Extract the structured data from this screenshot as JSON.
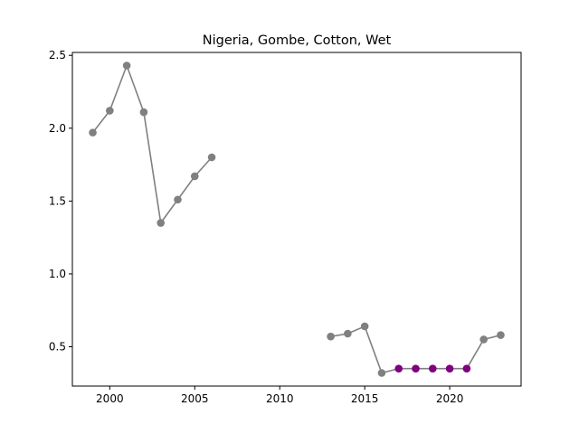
{
  "chart_data": {
    "type": "line",
    "title": "Nigeria, Gombe, Cotton, Wet",
    "xlabel": "",
    "ylabel": "",
    "xlim": [
      1997.8,
      2024.2
    ],
    "ylim": [
      0.23,
      2.52
    ],
    "x_ticks": [
      {
        "value": 2000,
        "label": "2000"
      },
      {
        "value": 2005,
        "label": "2005"
      },
      {
        "value": 2010,
        "label": "2010"
      },
      {
        "value": 2015,
        "label": "2015"
      },
      {
        "value": 2020,
        "label": "2020"
      }
    ],
    "y_ticks": [
      {
        "value": 0.5,
        "label": "0.5"
      },
      {
        "value": 1.0,
        "label": "1.0"
      },
      {
        "value": 1.5,
        "label": "1.5"
      },
      {
        "value": 2.0,
        "label": "2.0"
      },
      {
        "value": 2.5,
        "label": "2.5"
      }
    ],
    "grid": false,
    "line_color": "#808080",
    "default_marker_color": "#808080",
    "highlight_marker_color": "#800080",
    "segments": [
      {
        "points": [
          {
            "x": 1999,
            "y": 1.97
          },
          {
            "x": 2000,
            "y": 2.12
          },
          {
            "x": 2001,
            "y": 2.43
          },
          {
            "x": 2002,
            "y": 2.11
          },
          {
            "x": 2003,
            "y": 1.35
          },
          {
            "x": 2004,
            "y": 1.51
          },
          {
            "x": 2005,
            "y": 1.67
          },
          {
            "x": 2006,
            "y": 1.8
          }
        ]
      },
      {
        "points": [
          {
            "x": 2013,
            "y": 0.57
          },
          {
            "x": 2014,
            "y": 0.59
          },
          {
            "x": 2015,
            "y": 0.64
          },
          {
            "x": 2016,
            "y": 0.32
          },
          {
            "x": 2017,
            "y": 0.35,
            "highlight": true
          },
          {
            "x": 2018,
            "y": 0.35,
            "highlight": true
          },
          {
            "x": 2019,
            "y": 0.35,
            "highlight": true
          },
          {
            "x": 2020,
            "y": 0.35,
            "highlight": true
          },
          {
            "x": 2021,
            "y": 0.35,
            "highlight": true
          },
          {
            "x": 2022,
            "y": 0.55
          },
          {
            "x": 2023,
            "y": 0.58
          }
        ]
      }
    ]
  }
}
